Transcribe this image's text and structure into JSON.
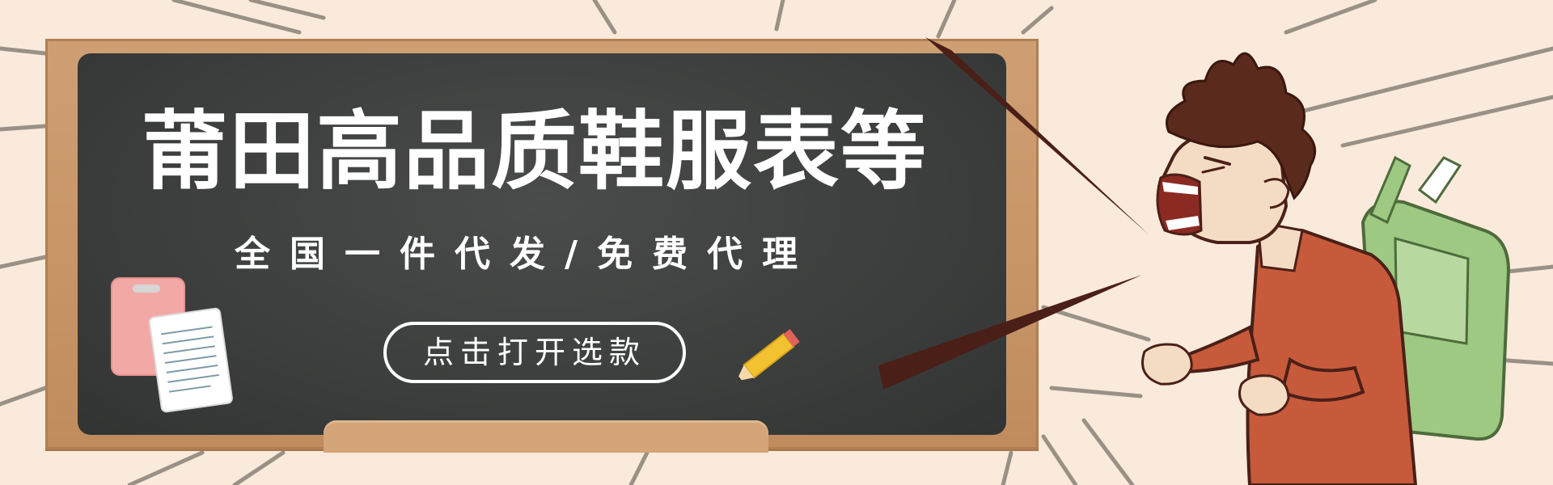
{
  "banner": {
    "headline": "莆田高品质鞋服表等",
    "subline": "全国一件代发/免费代理",
    "cta_label": "点击打开选款"
  },
  "colors": {
    "background": "#f9eadb",
    "board_frame": "#c8976b",
    "board_surface": "#3f4140",
    "text": "#ffffff",
    "ray_lines": "#8a8278",
    "speech_lines": "#4a1f17",
    "shirt": "#c75a3b",
    "backpack": "#9dc983",
    "hair": "#5a2a1d",
    "pencil": "#f2c230",
    "note_pink": "#f2a9a6"
  },
  "icons": [
    "clipboard-note-icon",
    "paper-note-icon",
    "pencil-icon"
  ]
}
